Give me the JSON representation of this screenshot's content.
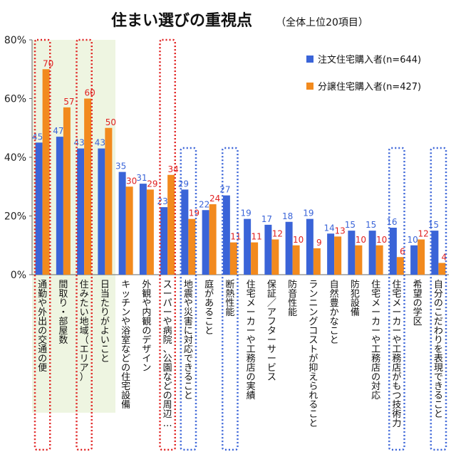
{
  "chart_data": {
    "type": "bar",
    "title": "住まい選びの重視点",
    "subtitle": "（全体上位20項目）",
    "ylim": [
      0,
      80
    ],
    "yticks": [
      "0%",
      "20%",
      "40%",
      "60%",
      "80%"
    ],
    "grid": false,
    "legend_position": "top-right",
    "categories": [
      "通勤や外出の交通の便",
      "間取り・部屋数",
      "住みたい地域（エリア）",
      "日当たりがよいこと",
      "キッチンや浴室などの住宅設備",
      "外観や内観のデザイン",
      "スーパーや病院、公園などの周辺…",
      "地震や災害に対応できること",
      "庭があること",
      "断熱性能",
      "住宅メーカーや工務店の実績",
      "保証／アフターサービス",
      "防音性能",
      "ランニングコストが抑えられること",
      "自然豊かなこと",
      "防犯設備",
      "住宅メーカーや工務店の対応",
      "住宅メーカーや工務店がもつ技術力",
      "希望の学区",
      "自分のこだわりを表現できること"
    ],
    "series": [
      {
        "name": "注文住宅購入者(n=644)",
        "color": "#3A64D8",
        "label_color": "#3A64D8",
        "values": [
          45,
          47,
          43,
          43,
          35,
          31,
          23,
          29,
          22,
          27,
          19,
          17,
          18,
          19,
          14,
          15,
          15,
          16,
          10,
          15
        ]
      },
      {
        "name": "分譲住宅購入者(n=427)",
        "color": "#F28A1E",
        "label_color": "#E02020",
        "values": [
          70,
          57,
          60,
          50,
          30,
          29,
          34,
          19,
          24,
          11,
          11,
          12,
          10,
          9,
          13,
          10,
          10,
          6,
          12,
          4
        ]
      }
    ],
    "highlight_shading_categories": [
      0,
      1,
      2,
      3
    ],
    "red_boxed_categories": [
      0,
      2,
      6
    ],
    "blue_boxed_categories": [
      7,
      9,
      17,
      19
    ]
  }
}
